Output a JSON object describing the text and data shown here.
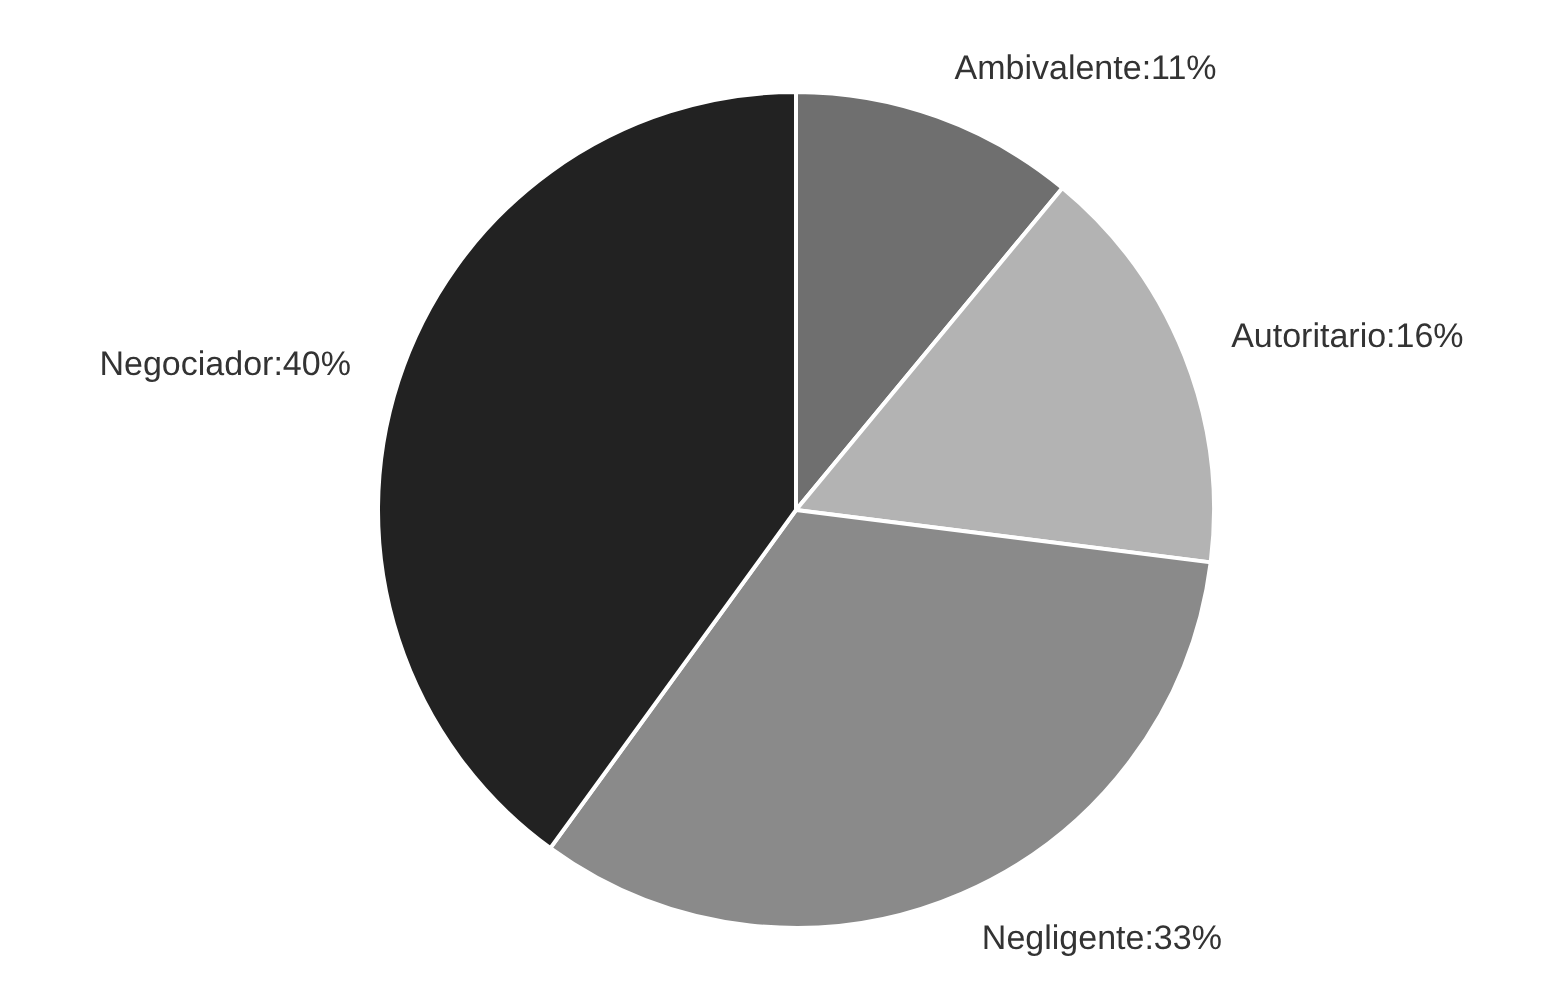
{
  "chart_data": {
    "type": "pie",
    "categories": [
      "Ambivalente",
      "Autoritario",
      "Negligente",
      "Negociador"
    ],
    "values": [
      11,
      16,
      33,
      40
    ],
    "value_labels": [
      "11%",
      "16%",
      "33%",
      "40%"
    ],
    "colors": [
      "#6f6f6f",
      "#b3b3b3",
      "#8a8a8a",
      "#222222"
    ],
    "legend": false
  }
}
